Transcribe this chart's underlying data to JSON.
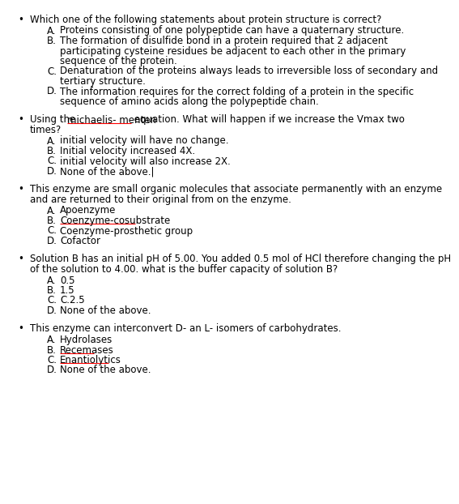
{
  "background_color": "#ffffff",
  "font_size": 8.5,
  "text_color": "#000000",
  "questions": [
    {
      "bullet": "•",
      "question": "Which one of the following statements about protein structure is correct?",
      "options": [
        {
          "label": "A.",
          "text": "Proteins consisting of one polypeptide can have a quaternary structure."
        },
        {
          "label": "B.",
          "text": "The formation of disulfide bond in a protein required that 2 adjacent\n    participating cysteine residues be adjacent to each other in the primary\n    sequence of the protein."
        },
        {
          "label": "C.",
          "text": "Denaturation of the proteins always leads to irreversible loss of secondary and\n    tertiary structure."
        },
        {
          "label": "D.",
          "text": "The information requires for the correct folding of a protein in the specific\n    sequence of amino acids along the polypeptide chain."
        }
      ]
    },
    {
      "bullet": "•",
      "question_parts": [
        {
          "text": "Using the ",
          "underline": false
        },
        {
          "text": "michaelis- menten",
          "underline": true
        },
        {
          "text": " equation. What will happen if we increase the Vmax two",
          "underline": false
        }
      ],
      "question_line2": "times?",
      "options": [
        {
          "label": "A.",
          "text": "initial velocity will have no change."
        },
        {
          "label": "B.",
          "text": "Initial velocity increased 4X."
        },
        {
          "label": "C.",
          "text": "initial velocity will also increase 2X."
        },
        {
          "label": "D.",
          "text": "None of the above.|"
        }
      ]
    },
    {
      "bullet": "•",
      "question": "This enzyme are small organic molecules that associate permanently with an enzyme\nand are returned to their original from on the enzyme.",
      "options": [
        {
          "label": "A.",
          "text": "Apoenzyme"
        },
        {
          "label": "B.",
          "text": "Coenzyme-cosubstrate",
          "underline": true
        },
        {
          "label": "C.",
          "text": "Coenzyme-prosthetic group"
        },
        {
          "label": "D.",
          "text": "Cofactor"
        }
      ]
    },
    {
      "bullet": "•",
      "question": "Solution B has an initial pH of 5.00. You added 0.5 mol of HCl therefore changing the pH\nof the solution to 4.00. what is the buffer capacity of solution B?",
      "options": [
        {
          "label": "A.",
          "text": "0.5"
        },
        {
          "label": "B.",
          "text": "1.5"
        },
        {
          "label": "C.",
          "text": "C.2.5"
        },
        {
          "label": "D.",
          "text": "None of the above."
        }
      ]
    },
    {
      "bullet": "•",
      "question": "This enzyme can interconvert D- an L- isomers of carbohydrates.",
      "options": [
        {
          "label": "A.",
          "text": "Hydrolases"
        },
        {
          "label": "B.",
          "text": "Recemases",
          "underline": true
        },
        {
          "label": "C.",
          "text": "Enantiolytics",
          "underline": true
        },
        {
          "label": "D.",
          "text": "None of the above."
        }
      ]
    }
  ]
}
